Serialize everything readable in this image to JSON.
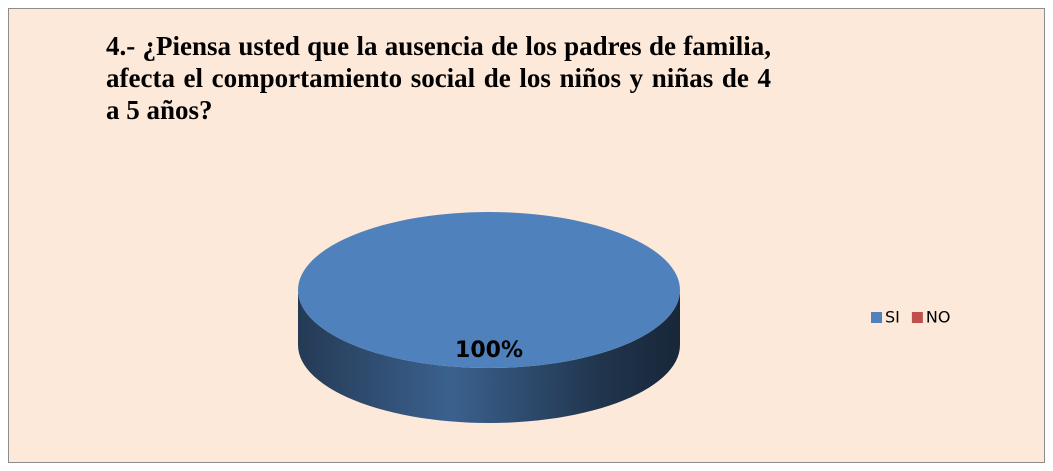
{
  "chart_data": {
    "type": "pie",
    "title": "4.- ¿Piensa usted que la ausencia de los padres de familia, afecta el comportamiento social de los niños y niñas de 4 a 5 años?",
    "categories": [
      "SI",
      "NO"
    ],
    "values": [
      100,
      0
    ],
    "value_labels": [
      "100%",
      null
    ],
    "colors": [
      "#4f81bd",
      "#c0504d"
    ],
    "legend": "right"
  }
}
